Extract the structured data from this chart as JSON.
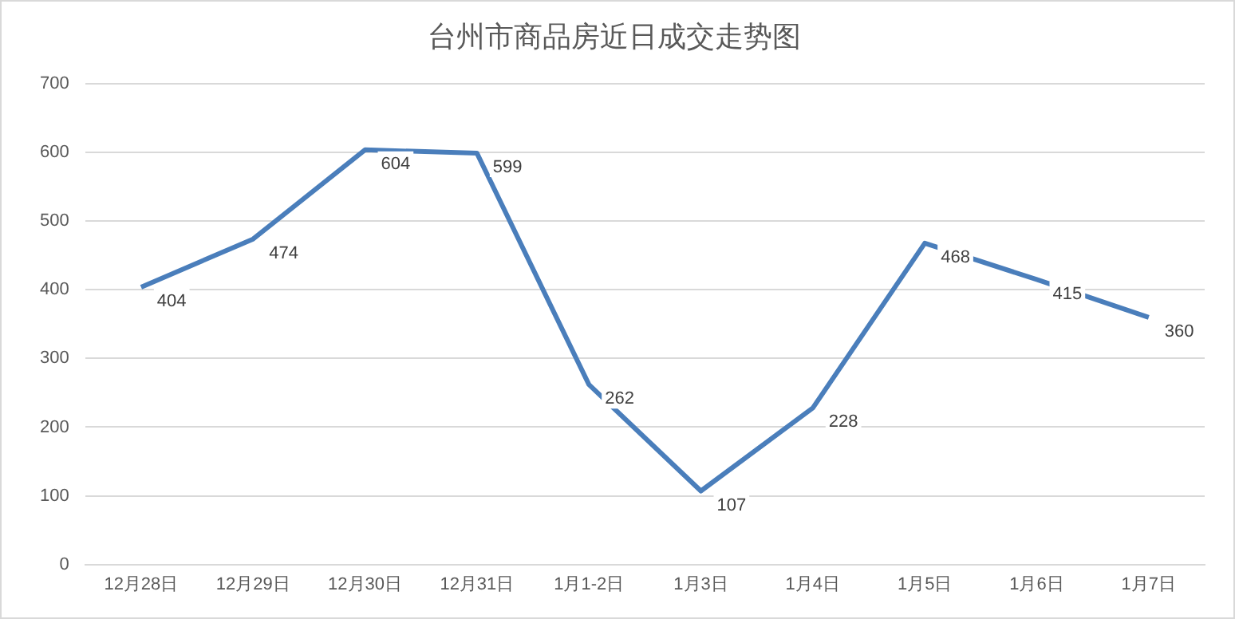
{
  "chart_data": {
    "type": "line",
    "title": "台州市商品房近日成交走势图",
    "categories": [
      "12月28日",
      "12月29日",
      "12月30日",
      "12月31日",
      "1月1-2日",
      "1月3日",
      "1月4日",
      "1月5日",
      "1月6日",
      "1月7日"
    ],
    "series": [
      {
        "color": "#4a7ebb",
        "values": [
          404,
          474,
          604,
          599,
          262,
          107,
          228,
          468,
          415,
          360
        ]
      }
    ],
    "ylim": [
      0,
      700
    ],
    "yticks": [
      0,
      100,
      200,
      300,
      400,
      500,
      600,
      700
    ],
    "grid": "y",
    "legend": false,
    "marker": "none",
    "line_style": "solid",
    "data_labels": true
  }
}
